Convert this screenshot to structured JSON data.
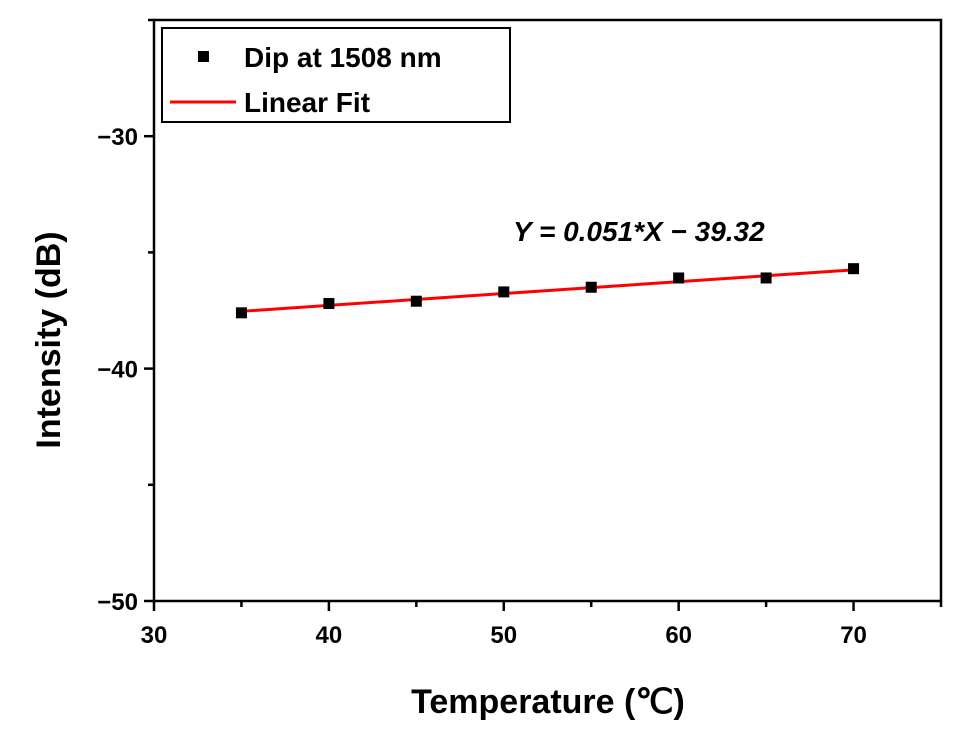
{
  "chart_data": {
    "type": "scatter",
    "xlabel": "Temperature (℃)",
    "ylabel": "Intensity (dB)",
    "xlim": [
      30,
      75
    ],
    "ylim": [
      -50,
      -25
    ],
    "xticks": [
      30,
      40,
      50,
      60,
      70
    ],
    "yticks": [
      -30,
      -40,
      -50
    ],
    "xtick_labels": [
      "30",
      "40",
      "50",
      "60",
      "70"
    ],
    "ytick_labels": [
      "−30",
      "−40",
      "−50"
    ],
    "series": [
      {
        "name": "Dip at 1508 nm",
        "kind": "scatter",
        "marker": "square",
        "color": "#000000",
        "x": [
          35,
          40,
          45,
          50,
          55,
          60,
          65,
          70
        ],
        "y": [
          -37.6,
          -37.2,
          -37.1,
          -36.7,
          -36.5,
          -36.1,
          -36.1,
          -35.7
        ]
      },
      {
        "name": "Linear Fit",
        "kind": "line",
        "color": "#ff0000",
        "x": [
          35,
          70
        ],
        "slope": 0.051,
        "intercept": -39.32
      }
    ],
    "legend": {
      "position": "top-left",
      "entries": [
        "Dip at 1508 nm",
        "Linear Fit"
      ]
    },
    "annotation": "Y = 0.051*X − 39.32"
  }
}
